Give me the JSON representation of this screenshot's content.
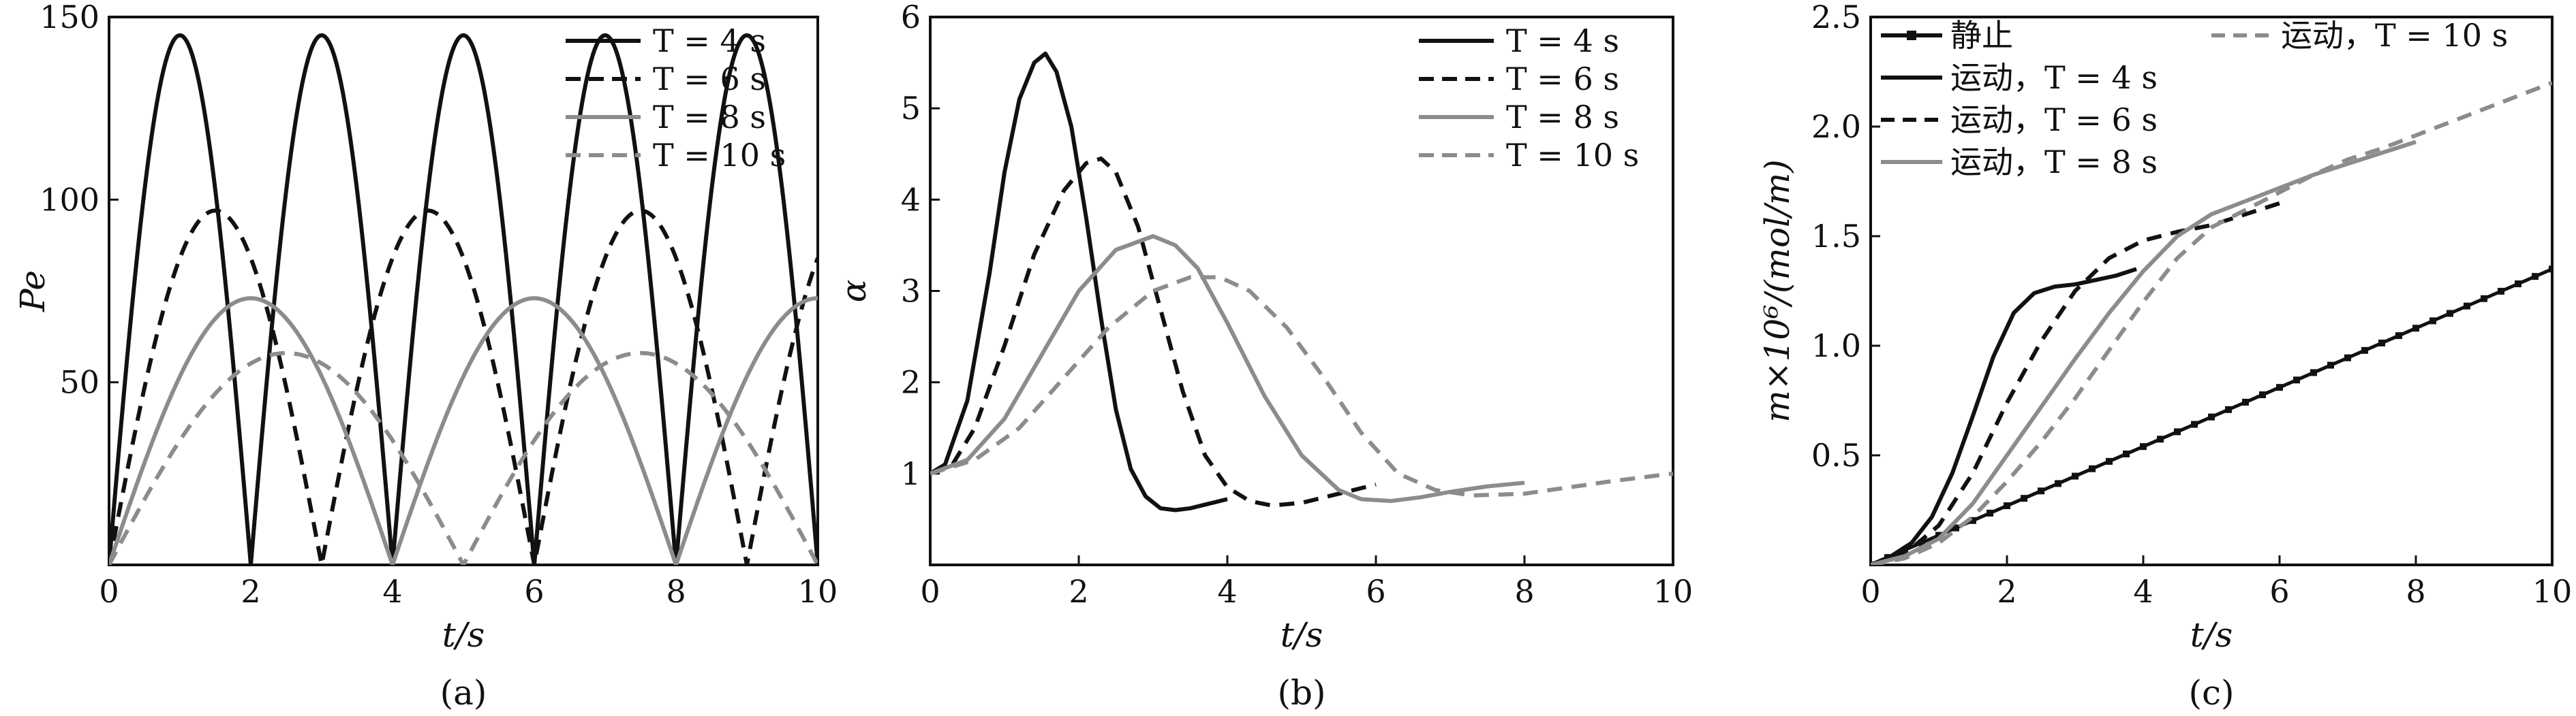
{
  "chart_data": [
    {
      "type": "line",
      "caption": "(a)",
      "xlabel": "t/s",
      "ylabel": "Pe",
      "xlim": [
        0,
        10
      ],
      "ylim": [
        0,
        150
      ],
      "xticks": [
        0,
        2,
        4,
        6,
        8,
        10
      ],
      "yticks": [
        50,
        100,
        150
      ],
      "legend_position": "top-right",
      "series": [
        {
          "name": "T = 4 s",
          "style": "solid",
          "color": "#111111",
          "kind": "abs_sine",
          "period": 4,
          "peak": 145
        },
        {
          "name": "T = 6 s",
          "style": "dashed",
          "color": "#111111",
          "kind": "abs_sine",
          "period": 6,
          "peak": 97
        },
        {
          "name": "T = 8 s",
          "style": "solid",
          "color": "#8c8c8c",
          "kind": "abs_sine",
          "period": 8,
          "peak": 73
        },
        {
          "name": "T = 10 s",
          "style": "dashed",
          "color": "#8c8c8c",
          "kind": "abs_sine",
          "period": 10,
          "peak": 58
        }
      ]
    },
    {
      "type": "line",
      "caption": "(b)",
      "xlabel": "t/s",
      "ylabel": "α",
      "xlim": [
        0,
        10
      ],
      "ylim": [
        0,
        6
      ],
      "xticks": [
        0,
        2,
        4,
        6,
        8,
        10
      ],
      "yticks": [
        1,
        2,
        3,
        4,
        5,
        6
      ],
      "legend_position": "top-right",
      "series": [
        {
          "name": "T = 4 s",
          "style": "solid",
          "color": "#111111",
          "x": [
            0,
            0.2,
            0.5,
            0.8,
            1.0,
            1.2,
            1.4,
            1.55,
            1.7,
            1.9,
            2.1,
            2.3,
            2.5,
            2.7,
            2.9,
            3.1,
            3.3,
            3.5,
            3.8,
            4.0
          ],
          "y": [
            1.0,
            1.1,
            1.8,
            3.2,
            4.3,
            5.1,
            5.5,
            5.6,
            5.4,
            4.8,
            3.8,
            2.7,
            1.7,
            1.05,
            0.75,
            0.62,
            0.6,
            0.62,
            0.68,
            0.72
          ]
        },
        {
          "name": "T = 6 s",
          "style": "dashed",
          "color": "#111111",
          "x": [
            0,
            0.3,
            0.6,
            1.0,
            1.4,
            1.8,
            2.1,
            2.3,
            2.5,
            2.8,
            3.1,
            3.4,
            3.7,
            4.0,
            4.3,
            4.6,
            5.0,
            5.5,
            6.0
          ],
          "y": [
            1.0,
            1.1,
            1.5,
            2.4,
            3.4,
            4.1,
            4.4,
            4.45,
            4.3,
            3.7,
            2.8,
            1.9,
            1.2,
            0.85,
            0.7,
            0.65,
            0.68,
            0.78,
            0.88
          ]
        },
        {
          "name": "T = 8 s",
          "style": "solid",
          "color": "#8c8c8c",
          "x": [
            0,
            0.5,
            1.0,
            1.5,
            2.0,
            2.5,
            3.0,
            3.3,
            3.6,
            4.0,
            4.5,
            5.0,
            5.5,
            5.8,
            6.2,
            6.6,
            7.0,
            7.5,
            8.0
          ],
          "y": [
            1.0,
            1.15,
            1.6,
            2.3,
            3.0,
            3.45,
            3.6,
            3.5,
            3.25,
            2.65,
            1.85,
            1.2,
            0.82,
            0.72,
            0.7,
            0.74,
            0.8,
            0.86,
            0.9
          ]
        },
        {
          "name": "T = 10 s",
          "style": "dashed",
          "color": "#8c8c8c",
          "x": [
            0,
            0.6,
            1.2,
            1.8,
            2.4,
            3.0,
            3.5,
            3.9,
            4.3,
            4.8,
            5.3,
            5.8,
            6.3,
            6.8,
            7.3,
            8.0,
            8.6,
            9.2,
            10.0
          ],
          "y": [
            1.0,
            1.15,
            1.5,
            2.05,
            2.6,
            3.0,
            3.15,
            3.15,
            3.0,
            2.6,
            2.05,
            1.45,
            1.0,
            0.82,
            0.76,
            0.78,
            0.85,
            0.92,
            1.0
          ]
        }
      ]
    },
    {
      "type": "line",
      "caption": "(c)",
      "xlabel": "t/s",
      "ylabel": "m×10⁶/(mol/m)",
      "xlim": [
        0,
        10
      ],
      "ylim": [
        0,
        2.5
      ],
      "xticks": [
        0,
        2,
        4,
        6,
        8,
        10
      ],
      "yticks": [
        0.5,
        1.0,
        1.5,
        2.0,
        2.5
      ],
      "ytick_labels": [
        "0.5",
        "1.0",
        "1.5",
        "2.0",
        "2.5"
      ],
      "legend_position": "top-left",
      "series": [
        {
          "name": "静止",
          "style": "solid-markers",
          "color": "#111111",
          "x": [
            0,
            10
          ],
          "y": [
            0,
            1.35
          ]
        },
        {
          "name": "运动，T = 4 s",
          "style": "solid",
          "color": "#111111",
          "x": [
            0,
            0.3,
            0.6,
            0.9,
            1.2,
            1.5,
            1.8,
            2.1,
            2.4,
            2.7,
            3.0,
            3.3,
            3.6,
            3.9
          ],
          "y": [
            0,
            0.04,
            0.1,
            0.22,
            0.42,
            0.68,
            0.95,
            1.15,
            1.24,
            1.27,
            1.28,
            1.3,
            1.32,
            1.35
          ]
        },
        {
          "name": "运动，T = 6 s",
          "style": "dashed",
          "color": "#111111",
          "x": [
            0,
            0.5,
            1.0,
            1.5,
            2.0,
            2.5,
            3.0,
            3.5,
            4.0,
            4.5,
            5.0,
            5.5,
            6.0
          ],
          "y": [
            0,
            0.05,
            0.18,
            0.42,
            0.74,
            1.02,
            1.25,
            1.4,
            1.48,
            1.52,
            1.55,
            1.6,
            1.65
          ]
        },
        {
          "name": "运动，T = 8 s",
          "style": "solid",
          "color": "#8c8c8c",
          "x": [
            0,
            0.5,
            1.0,
            1.5,
            2.0,
            2.5,
            3.0,
            3.5,
            4.0,
            4.5,
            5.0,
            5.5,
            6.0,
            6.5,
            7.0,
            7.5,
            8.0
          ],
          "y": [
            0,
            0.04,
            0.12,
            0.28,
            0.5,
            0.72,
            0.94,
            1.15,
            1.34,
            1.5,
            1.6,
            1.66,
            1.72,
            1.78,
            1.83,
            1.88,
            1.93
          ]
        },
        {
          "name": "运动，T = 10 s",
          "style": "dashed",
          "color": "#8c8c8c",
          "x": [
            0,
            0.5,
            1.0,
            1.5,
            2.0,
            2.5,
            3.0,
            3.5,
            4.0,
            4.5,
            5.0,
            5.5,
            6.0,
            6.5,
            7.0,
            7.5,
            8.0,
            8.5,
            9.0,
            9.5,
            10.0
          ],
          "y": [
            0,
            0.03,
            0.1,
            0.22,
            0.38,
            0.56,
            0.76,
            0.98,
            1.2,
            1.4,
            1.54,
            1.62,
            1.7,
            1.78,
            1.85,
            1.9,
            1.96,
            2.02,
            2.08,
            2.14,
            2.2
          ]
        }
      ]
    }
  ]
}
